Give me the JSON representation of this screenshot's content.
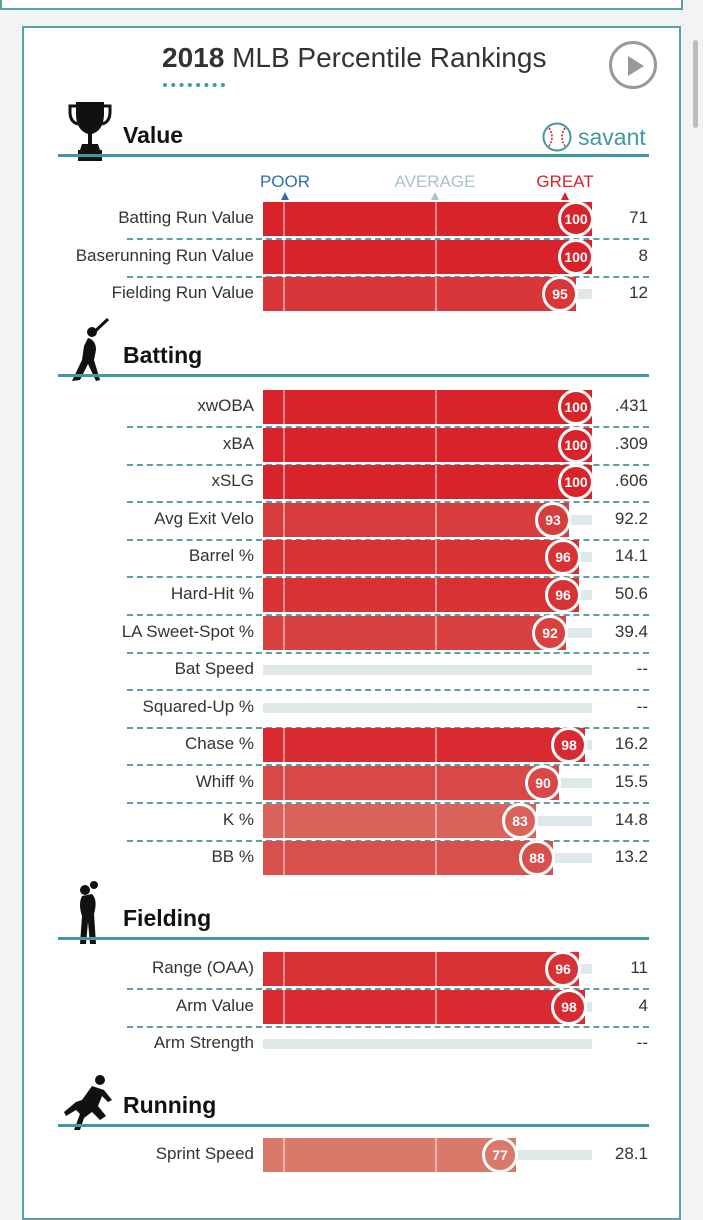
{
  "page": {
    "title_year": "2018",
    "title_rest": "MLB Percentile Rankings",
    "brand": "savant",
    "play_icon": "play-icon",
    "colors": {
      "accent": "#3e9aa0",
      "great": "#d8232a",
      "poor": "#2e6eb5",
      "average": "#a9c4c7"
    }
  },
  "scale": {
    "poor": "POOR",
    "average": "AVERAGE",
    "great": "GREAT"
  },
  "sections": [
    {
      "key": "value",
      "title": "Value",
      "icon": "trophy-icon",
      "rows": [
        {
          "label": "Batting Run Value",
          "percentile": 100,
          "value": "71"
        },
        {
          "label": "Baserunning Run Value",
          "percentile": 100,
          "value": "8"
        },
        {
          "label": "Fielding Run Value",
          "percentile": 95,
          "value": "12"
        }
      ]
    },
    {
      "key": "batting",
      "title": "Batting",
      "icon": "batter-icon",
      "rows": [
        {
          "label": "xwOBA",
          "percentile": 100,
          "value": ".431"
        },
        {
          "label": "xBA",
          "percentile": 100,
          "value": ".309"
        },
        {
          "label": "xSLG",
          "percentile": 100,
          "value": ".606"
        },
        {
          "label": "Avg Exit Velo",
          "percentile": 93,
          "value": "92.2"
        },
        {
          "label": "Barrel %",
          "percentile": 96,
          "value": "14.1"
        },
        {
          "label": "Hard-Hit %",
          "percentile": 96,
          "value": "50.6"
        },
        {
          "label": "LA Sweet-Spot %",
          "percentile": 92,
          "value": "39.4"
        },
        {
          "label": "Bat Speed",
          "percentile": null,
          "value": "--"
        },
        {
          "label": "Squared-Up %",
          "percentile": null,
          "value": "--"
        },
        {
          "label": "Chase %",
          "percentile": 98,
          "value": "16.2"
        },
        {
          "label": "Whiff %",
          "percentile": 90,
          "value": "15.5"
        },
        {
          "label": "K %",
          "percentile": 83,
          "value": "14.8"
        },
        {
          "label": "BB %",
          "percentile": 88,
          "value": "13.2"
        }
      ]
    },
    {
      "key": "fielding",
      "title": "Fielding",
      "icon": "fielder-icon",
      "rows": [
        {
          "label": "Range (OAA)",
          "percentile": 96,
          "value": "11"
        },
        {
          "label": "Arm Value",
          "percentile": 98,
          "value": "4"
        },
        {
          "label": "Arm Strength",
          "percentile": null,
          "value": "--"
        }
      ]
    },
    {
      "key": "running",
      "title": "Running",
      "icon": "runner-icon",
      "rows": [
        {
          "label": "Sprint Speed",
          "percentile": 77,
          "value": "28.1"
        }
      ]
    }
  ]
}
